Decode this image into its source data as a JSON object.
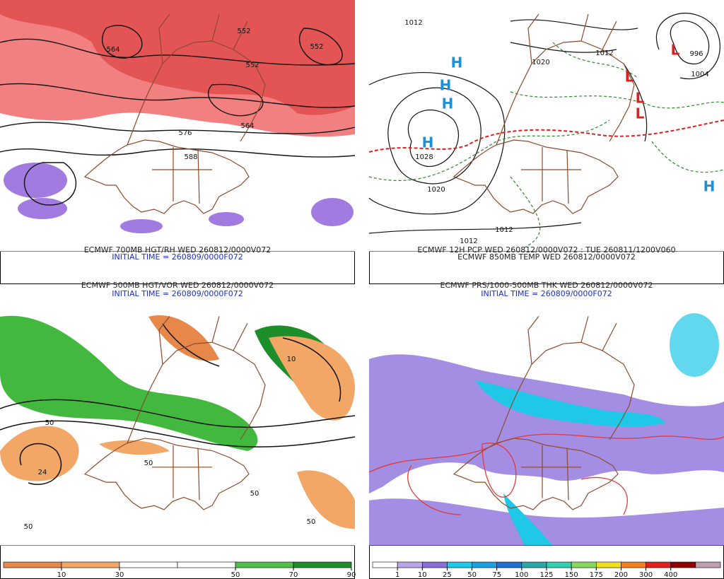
{
  "panels": [
    {
      "caption": "ECMWF 500MB HGT/VOR WED 260812/0000V072",
      "initial_time": "INITIAL TIME = 260809/0000F072",
      "labels": [
        "552",
        "564",
        "552",
        "552",
        "564",
        "576",
        "588"
      ]
    },
    {
      "caption": "ECMWF PRS/1000-500MB THK WED 260812/0000V072",
      "initial_time": "INITIAL TIME = 260809/0000F072",
      "labels": [
        "1012",
        "1012",
        "1020",
        "996",
        "1004",
        "1028",
        "1020",
        "1012",
        "1012",
        "H",
        "H",
        "H",
        "H",
        "H",
        "L",
        "L",
        "L",
        "L"
      ]
    },
    {
      "caption": "ECMWF 700MB HGT/RH WED 260812/0000V072",
      "initial_time": "INITIAL TIME = 260809/0000F072",
      "labels": [
        "50",
        "24",
        "50",
        "50",
        "50",
        "10",
        "50"
      ],
      "colorbar": {
        "labels": [
          10,
          30,
          50,
          70,
          90
        ],
        "colors": [
          "#e8874a",
          "#f2a766",
          "#ffffff",
          "#ffffff",
          "#4fc14a",
          "#1d8f2a"
        ]
      }
    },
    {
      "caption": "ECMWF 12H PCP WED 260812/0000V072 : TUE 260811/1200V060",
      "initial_time": "ECMWF 850MB TEMP WED 260812/0000V072",
      "colorbar": {
        "labels": [
          1,
          10,
          25,
          50,
          75,
          100,
          125,
          150,
          175,
          200,
          300,
          400
        ],
        "colors": [
          "#ffffff",
          "#b9a6e8",
          "#8a6fd8",
          "#20c8e8",
          "#1aa0e0",
          "#2070d0",
          "#2aa8a8",
          "#30d0b0",
          "#88d860",
          "#f0e020",
          "#f08020",
          "#e02020",
          "#900000",
          "#c0a0b0"
        ]
      }
    }
  ]
}
